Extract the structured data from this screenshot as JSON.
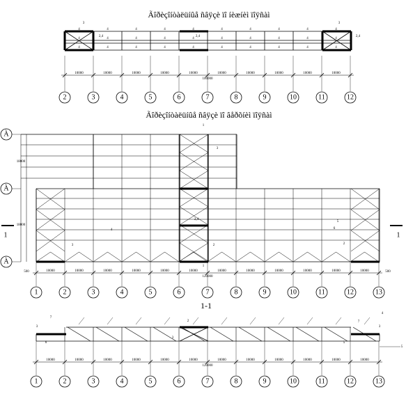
{
  "titles": [
    "Ãîðèçîíòàëüíûå ñâÿçè ïî íèæíèì ïîÿñàì",
    "Ãîðèçîíòàëüíûå ñâÿçè ïî âåðõíèì ïîÿñàì"
  ],
  "section_label": "1-1",
  "top_plan": {
    "axes": [
      "2",
      "3",
      "4",
      "5",
      "6",
      "7",
      "8",
      "9",
      "10",
      "11",
      "12"
    ],
    "spans": [
      "10000",
      "10000",
      "10000",
      "10000",
      "10000",
      "10000",
      "10000",
      "10000",
      "10000",
      "10000"
    ],
    "total": "100000",
    "member_label": "4",
    "brace_label": "3",
    "strut_label": "2,4"
  },
  "middle_plan": {
    "axes": [
      "1",
      "2",
      "3",
      "4",
      "5",
      "6",
      "7",
      "8",
      "9",
      "10",
      "11",
      "12",
      "13"
    ],
    "spans": [
      "10000",
      "10000",
      "10000",
      "10000",
      "10000",
      "10000",
      "10000",
      "10000",
      "10000",
      "10000",
      "10000",
      "10000"
    ],
    "total": "120000",
    "rows": [
      "À",
      "À",
      "À"
    ],
    "row_spans": [
      "18000",
      "18000"
    ],
    "edge": "500",
    "section_marks": [
      "1",
      "1"
    ],
    "notes": [
      "1",
      "3",
      "4",
      "2,4",
      "5",
      "6",
      "2",
      "3",
      "2",
      "1"
    ]
  },
  "section": {
    "axes": [
      "1",
      "2",
      "3",
      "4",
      "5",
      "6",
      "7",
      "8",
      "9",
      "10",
      "11",
      "12",
      "13"
    ],
    "spans": [
      "10000",
      "10000",
      "10000",
      "10000",
      "10000",
      "10000",
      "10000",
      "10000",
      "10000",
      "10000",
      "10000",
      "10000"
    ],
    "total": "120000",
    "notes": [
      "3",
      "7",
      "6",
      "2",
      "3",
      "7",
      "4",
      "3",
      "5",
      "5"
    ]
  }
}
